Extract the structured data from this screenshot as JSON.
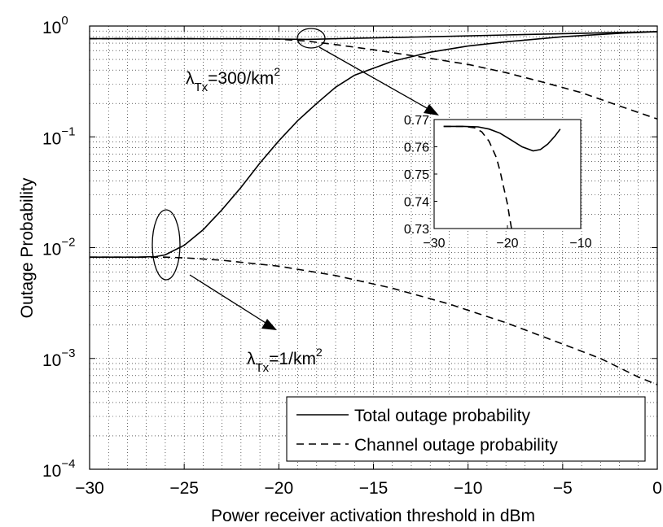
{
  "chart_data": [
    {
      "type": "line",
      "title": "",
      "xlabel": "Power receiver activation threshold in dBm",
      "ylabel": "Outage Probability",
      "xlim": [
        -30,
        0
      ],
      "ylim": [
        0.0001,
        1
      ],
      "yscale": "log",
      "grid": "on (major and minor, dotted)",
      "xticks": [
        "−30",
        "−25",
        "−20",
        "−15",
        "−10",
        "−5",
        "0"
      ],
      "yticks": [
        {
          "base": "10",
          "exp": "−4"
        },
        {
          "base": "10",
          "exp": "−3"
        },
        {
          "base": "10",
          "exp": "−2"
        },
        {
          "base": "10",
          "exp": "−1"
        },
        {
          "base": "10",
          "exp": "0"
        }
      ],
      "legend": {
        "position": "bottom-right",
        "entries": [
          {
            "label": "Total outage probability",
            "style": "solid"
          },
          {
            "label": "Channel outage probability",
            "style": "dashed"
          }
        ]
      },
      "annotations": [
        {
          "text": "λ",
          "sub": "Tx",
          "rest": "=300/km",
          "sup": "2"
        },
        {
          "text": "λ",
          "sub": "Tx",
          "rest": "=1/km",
          "sup": "2"
        }
      ],
      "series": [
        {
          "group": "300/km2",
          "style": "solid",
          "color": "#000000",
          "x": [
            -30,
            -25,
            -22,
            -20,
            -18.5,
            -18,
            -16,
            -12,
            -8,
            -4,
            0
          ],
          "y": [
            0.768,
            0.768,
            0.767,
            0.763,
            0.758,
            0.76,
            0.775,
            0.8,
            0.83,
            0.86,
            0.89
          ]
        },
        {
          "group": "300/km2",
          "style": "dashed",
          "color": "#000000",
          "x": [
            -30,
            -25,
            -22,
            -20,
            -18.5,
            -17,
            -15,
            -12,
            -10,
            -8,
            -6,
            -4,
            -2,
            0
          ],
          "y": [
            0.768,
            0.768,
            0.767,
            0.762,
            0.73,
            0.68,
            0.61,
            0.51,
            0.45,
            0.38,
            0.31,
            0.25,
            0.19,
            0.145
          ]
        },
        {
          "group": "1/km2",
          "style": "solid",
          "color": "#000000",
          "x": [
            -30,
            -27.5,
            -26.5,
            -26,
            -25,
            -24,
            -23,
            -22,
            -21,
            -20,
            -19,
            -18,
            -17,
            -16,
            -14,
            -12,
            -10,
            -8,
            -5,
            -2,
            0
          ],
          "y": [
            0.0082,
            0.0082,
            0.0083,
            0.0086,
            0.0105,
            0.0145,
            0.022,
            0.035,
            0.058,
            0.092,
            0.14,
            0.2,
            0.28,
            0.36,
            0.48,
            0.58,
            0.66,
            0.72,
            0.8,
            0.86,
            0.89
          ]
        },
        {
          "group": "1/km2",
          "style": "dashed",
          "color": "#000000",
          "x": [
            -30,
            -27.5,
            -26,
            -25,
            -23,
            -20,
            -17,
            -14,
            -11,
            -8,
            -5,
            -3,
            -1,
            0
          ],
          "y": [
            0.0082,
            0.0082,
            0.0082,
            0.0081,
            0.0077,
            0.0068,
            0.0056,
            0.0043,
            0.0031,
            0.0021,
            0.00135,
            0.001,
            0.00068,
            0.00058
          ]
        }
      ]
    },
    {
      "type": "line",
      "title": "",
      "xlabel": "",
      "ylabel": "",
      "xlim": [
        -30,
        -10
      ],
      "ylim": [
        0.73,
        0.77
      ],
      "grid": "off",
      "xticks": [
        "−30",
        "−20",
        "−10"
      ],
      "yticks": [
        "0.77",
        "0.76",
        "0.75",
        "0.74",
        "0.73"
      ],
      "series": [
        {
          "style": "solid",
          "color": "#000000",
          "x": [
            -28.7,
            -26,
            -24,
            -22.5,
            -21,
            -19.5,
            -18,
            -16.5,
            -15.5,
            -14.5,
            -13.5,
            -12.8
          ],
          "y": [
            0.7675,
            0.7675,
            0.7673,
            0.7665,
            0.765,
            0.7625,
            0.76,
            0.7585,
            0.759,
            0.761,
            0.764,
            0.7665
          ]
        },
        {
          "style": "dashed",
          "color": "#000000",
          "x": [
            -28.7,
            -26,
            -24.5,
            -23.5,
            -22.5,
            -21.5,
            -21,
            -20.5,
            -20,
            -19.7,
            -19.45
          ],
          "y": [
            0.7675,
            0.7675,
            0.767,
            0.7655,
            0.762,
            0.756,
            0.751,
            0.745,
            0.739,
            0.734,
            0.73
          ]
        }
      ]
    }
  ]
}
